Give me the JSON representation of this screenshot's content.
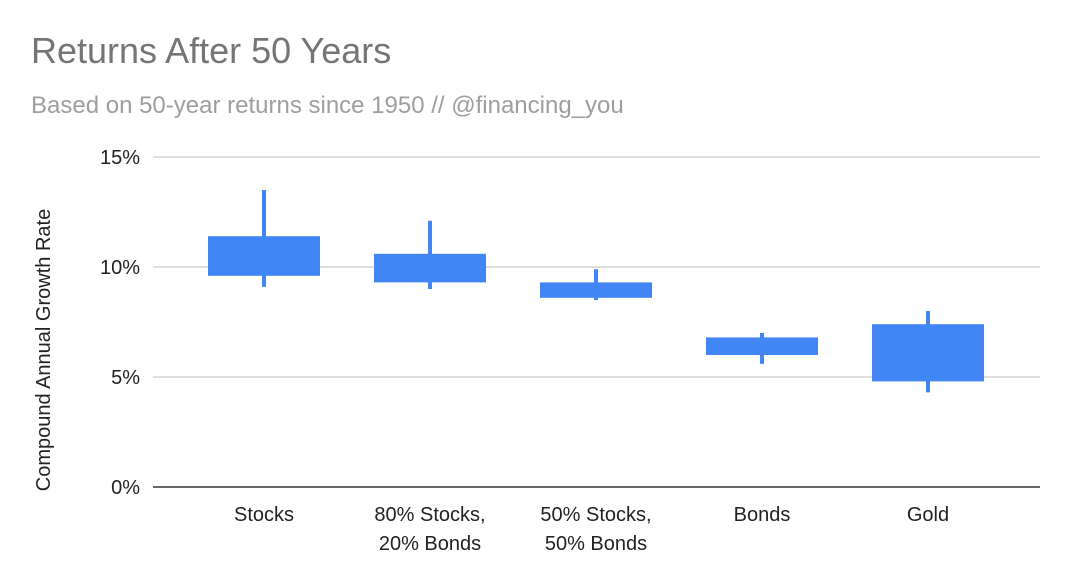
{
  "chart_data": {
    "type": "candlestick",
    "title": "Returns After 50 Years",
    "subtitle": "Based on 50-year returns since 1950 // @financing_you",
    "xlabel": "",
    "ylabel": "Compound Annual Growth Rate",
    "ylim": [
      0,
      15
    ],
    "yticks": [
      0,
      5,
      10,
      15
    ],
    "ytick_labels": [
      "0%",
      "5%",
      "10%",
      "15%"
    ],
    "grid": true,
    "legend": "none",
    "bar_color": "#4285f4",
    "categories": [
      {
        "label": [
          "Stocks"
        ],
        "min": 9.1,
        "box_low": 9.6,
        "box_high": 11.4,
        "max": 13.5
      },
      {
        "label": [
          "80% Stocks,",
          "20% Bonds"
        ],
        "min": 9.0,
        "box_low": 9.3,
        "box_high": 10.6,
        "max": 12.1
      },
      {
        "label": [
          "50% Stocks,",
          "50% Bonds"
        ],
        "min": 8.5,
        "box_low": 8.6,
        "box_high": 9.3,
        "max": 9.9
      },
      {
        "label": [
          "Bonds"
        ],
        "min": 5.6,
        "box_low": 6.0,
        "box_high": 6.8,
        "max": 7.0
      },
      {
        "label": [
          "Gold"
        ],
        "min": 4.3,
        "box_low": 4.8,
        "box_high": 7.4,
        "max": 8.0
      }
    ]
  }
}
